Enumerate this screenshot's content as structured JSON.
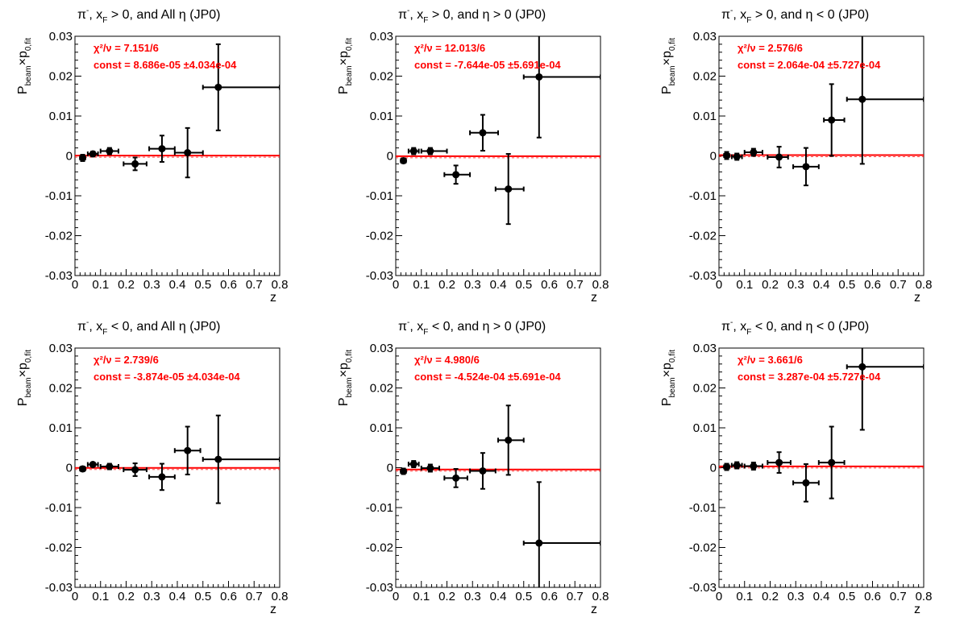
{
  "chart_data": [
    {
      "type": "scatter",
      "title_parts": {
        "particle": "π",
        "particle_sup": "-",
        "xf": "x",
        "xf_sub": "F",
        "cut": " > 0, and All η (JP0)"
      },
      "xlabel": "z",
      "ylabel_parts": {
        "p1": "P",
        "p1_sub": "beam",
        "times": "×p",
        "p2_sub": "0,fit"
      },
      "xlim": [
        0,
        0.8
      ],
      "ylim": [
        -0.03,
        0.03
      ],
      "xticks": [
        "0",
        "0.1",
        "0.2",
        "0.3",
        "0.4",
        "0.5",
        "0.6",
        "0.7",
        "0.8"
      ],
      "yticks": [
        "-0.03",
        "-0.02",
        "-0.01",
        "0",
        "0.01",
        "0.02",
        "0.03"
      ],
      "xtick_values": [
        0,
        0.1,
        0.2,
        0.3,
        0.4,
        0.5,
        0.6,
        0.7,
        0.8
      ],
      "ytick_values": [
        -0.03,
        -0.02,
        -0.01,
        0,
        0.01,
        0.02,
        0.03
      ],
      "chi2_label": "χ²/ν = 7.151/6",
      "const_label": "const = 8.686e-05  ±4.034e-04",
      "fit_const": 8.686e-05,
      "points": [
        {
          "x": 0.03,
          "xerr_lo": 0.01,
          "xerr_hi": 0.01,
          "y": -0.0005,
          "yerr": 0.0008
        },
        {
          "x": 0.07,
          "xerr_lo": 0.02,
          "xerr_hi": 0.02,
          "y": 0.0005,
          "yerr": 0.0006
        },
        {
          "x": 0.135,
          "xerr_lo": 0.035,
          "xerr_hi": 0.035,
          "y": 0.0012,
          "yerr": 0.0008
        },
        {
          "x": 0.235,
          "xerr_lo": 0.045,
          "xerr_hi": 0.045,
          "y": -0.002,
          "yerr": 0.0016
        },
        {
          "x": 0.34,
          "xerr_lo": 0.05,
          "xerr_hi": 0.05,
          "y": 0.0018,
          "yerr": 0.0033
        },
        {
          "x": 0.44,
          "xerr_lo": 0.05,
          "xerr_hi": 0.06,
          "y": 0.0008,
          "yerr": 0.0062
        },
        {
          "x": 0.56,
          "xerr_lo": 0.06,
          "xerr_hi": 0.24,
          "y": 0.0172,
          "yerr": 0.0108
        }
      ]
    },
    {
      "type": "scatter",
      "title_parts": {
        "particle": "π",
        "particle_sup": "-",
        "xf": "x",
        "xf_sub": "F",
        "cut": " > 0, and η > 0 (JP0)"
      },
      "xlabel": "z",
      "ylabel_parts": {
        "p1": "P",
        "p1_sub": "beam",
        "times": "×p",
        "p2_sub": "0,fit"
      },
      "xlim": [
        0,
        0.8
      ],
      "ylim": [
        -0.03,
        0.03
      ],
      "xticks": [
        "0",
        "0.1",
        "0.2",
        "0.3",
        "0.4",
        "0.5",
        "0.6",
        "0.7",
        "0.8"
      ],
      "yticks": [
        "-0.03",
        "-0.02",
        "-0.01",
        "0",
        "0.01",
        "0.02",
        "0.03"
      ],
      "xtick_values": [
        0,
        0.1,
        0.2,
        0.3,
        0.4,
        0.5,
        0.6,
        0.7,
        0.8
      ],
      "ytick_values": [
        -0.03,
        -0.02,
        -0.01,
        0,
        0.01,
        0.02,
        0.03
      ],
      "chi2_label": "χ²/ν = 12.013/6",
      "const_label": "const = -7.644e-05  ±5.691e-04",
      "fit_const": -7.644e-05,
      "points": [
        {
          "x": 0.03,
          "xerr_lo": 0.01,
          "xerr_hi": 0.01,
          "y": -0.0012,
          "yerr": 0.0006
        },
        {
          "x": 0.07,
          "xerr_lo": 0.02,
          "xerr_hi": 0.02,
          "y": 0.0012,
          "yerr": 0.0008
        },
        {
          "x": 0.135,
          "xerr_lo": 0.035,
          "xerr_hi": 0.065,
          "y": 0.0012,
          "yerr": 0.0008
        },
        {
          "x": 0.235,
          "xerr_lo": 0.045,
          "xerr_hi": 0.055,
          "y": -0.0047,
          "yerr": 0.0023
        },
        {
          "x": 0.34,
          "xerr_lo": 0.05,
          "xerr_hi": 0.06,
          "y": 0.0058,
          "yerr": 0.0045
        },
        {
          "x": 0.44,
          "xerr_lo": 0.05,
          "xerr_hi": 0.06,
          "y": -0.0083,
          "yerr": 0.0088
        },
        {
          "x": 0.56,
          "xerr_lo": 0.06,
          "xerr_hi": 0.24,
          "y": 0.0198,
          "yerr": 0.0152
        }
      ]
    },
    {
      "type": "scatter",
      "title_parts": {
        "particle": "π",
        "particle_sup": "-",
        "xf": "x",
        "xf_sub": "F",
        "cut": " > 0, and η < 0 (JP0)"
      },
      "xlabel": "z",
      "ylabel_parts": {
        "p1": "P",
        "p1_sub": "beam",
        "times": "×p",
        "p2_sub": "0,fit"
      },
      "xlim": [
        0,
        0.8
      ],
      "ylim": [
        -0.03,
        0.03
      ],
      "xticks": [
        "0",
        "0.1",
        "0.2",
        "0.3",
        "0.4",
        "0.5",
        "0.6",
        "0.7",
        "0.8"
      ],
      "yticks": [
        "-0.03",
        "-0.02",
        "-0.01",
        "0",
        "0.01",
        "0.02",
        "0.03"
      ],
      "xtick_values": [
        0,
        0.1,
        0.2,
        0.3,
        0.4,
        0.5,
        0.6,
        0.7,
        0.8
      ],
      "ytick_values": [
        -0.03,
        -0.02,
        -0.01,
        0,
        0.01,
        0.02,
        0.03
      ],
      "chi2_label": "χ²/ν = 2.576/6",
      "const_label": "const = 2.064e-04  ±5.727e-04",
      "fit_const": 0.0002064,
      "points": [
        {
          "x": 0.03,
          "xerr_lo": 0.01,
          "xerr_hi": 0.01,
          "y": 0.0001,
          "yerr": 0.0009
        },
        {
          "x": 0.07,
          "xerr_lo": 0.02,
          "xerr_hi": 0.02,
          "y": -0.0002,
          "yerr": 0.0008
        },
        {
          "x": 0.135,
          "xerr_lo": 0.035,
          "xerr_hi": 0.035,
          "y": 0.0009,
          "yerr": 0.0009
        },
        {
          "x": 0.235,
          "xerr_lo": 0.045,
          "xerr_hi": 0.035,
          "y": -0.0003,
          "yerr": 0.0026
        },
        {
          "x": 0.34,
          "xerr_lo": 0.05,
          "xerr_hi": 0.05,
          "y": -0.0027,
          "yerr": 0.0047
        },
        {
          "x": 0.44,
          "xerr_lo": 0.03,
          "xerr_hi": 0.05,
          "y": 0.009,
          "yerr": 0.009
        },
        {
          "x": 0.56,
          "xerr_lo": 0.06,
          "xerr_hi": 0.24,
          "y": 0.0142,
          "yerr": 0.0162
        }
      ]
    },
    {
      "type": "scatter",
      "title_parts": {
        "particle": "π",
        "particle_sup": "-",
        "xf": "x",
        "xf_sub": "F",
        "cut": " < 0, and All η (JP0)"
      },
      "xlabel": "z",
      "ylabel_parts": {
        "p1": "P",
        "p1_sub": "beam",
        "times": "×p",
        "p2_sub": "0,fit"
      },
      "xlim": [
        0,
        0.8
      ],
      "ylim": [
        -0.03,
        0.03
      ],
      "xticks": [
        "0",
        "0.1",
        "0.2",
        "0.3",
        "0.4",
        "0.5",
        "0.6",
        "0.7",
        "0.8"
      ],
      "yticks": [
        "-0.03",
        "-0.02",
        "-0.01",
        "0",
        "0.01",
        "0.02",
        "0.03"
      ],
      "xtick_values": [
        0,
        0.1,
        0.2,
        0.3,
        0.4,
        0.5,
        0.6,
        0.7,
        0.8
      ],
      "ytick_values": [
        -0.03,
        -0.02,
        -0.01,
        0,
        0.01,
        0.02,
        0.03
      ],
      "chi2_label": "χ²/ν = 2.739/6",
      "const_label": "const = -3.874e-05  ±4.034e-04",
      "fit_const": -3.874e-05,
      "points": [
        {
          "x": 0.03,
          "xerr_lo": 0.01,
          "xerr_hi": 0.01,
          "y": -0.0003,
          "yerr": 0.0006
        },
        {
          "x": 0.07,
          "xerr_lo": 0.02,
          "xerr_hi": 0.02,
          "y": 0.0008,
          "yerr": 0.0005
        },
        {
          "x": 0.135,
          "xerr_lo": 0.035,
          "xerr_hi": 0.035,
          "y": 0.0003,
          "yerr": 0.0007
        },
        {
          "x": 0.235,
          "xerr_lo": 0.045,
          "xerr_hi": 0.045,
          "y": -0.0005,
          "yerr": 0.0016
        },
        {
          "x": 0.34,
          "xerr_lo": 0.05,
          "xerr_hi": 0.05,
          "y": -0.0023,
          "yerr": 0.0033
        },
        {
          "x": 0.44,
          "xerr_lo": 0.05,
          "xerr_hi": 0.05,
          "y": 0.0043,
          "yerr": 0.006
        },
        {
          "x": 0.56,
          "xerr_lo": 0.06,
          "xerr_hi": 0.24,
          "y": 0.0021,
          "yerr": 0.011
        }
      ]
    },
    {
      "type": "scatter",
      "title_parts": {
        "particle": "π",
        "particle_sup": "-",
        "xf": "x",
        "xf_sub": "F",
        "cut": " < 0, and η > 0 (JP0)"
      },
      "xlabel": "z",
      "ylabel_parts": {
        "p1": "P",
        "p1_sub": "beam",
        "times": "×p",
        "p2_sub": "0,fit"
      },
      "xlim": [
        0,
        0.8
      ],
      "ylim": [
        -0.03,
        0.03
      ],
      "xticks": [
        "0",
        "0.1",
        "0.2",
        "0.3",
        "0.4",
        "0.5",
        "0.6",
        "0.7",
        "0.8"
      ],
      "yticks": [
        "-0.03",
        "-0.02",
        "-0.01",
        "0",
        "0.01",
        "0.02",
        "0.03"
      ],
      "xtick_values": [
        0,
        0.1,
        0.2,
        0.3,
        0.4,
        0.5,
        0.6,
        0.7,
        0.8
      ],
      "ytick_values": [
        -0.03,
        -0.02,
        -0.01,
        0,
        0.01,
        0.02,
        0.03
      ],
      "chi2_label": "χ²/ν = 4.980/6",
      "const_label": "const = -4.524e-04  ±5.691e-04",
      "fit_const": -0.0004524,
      "points": [
        {
          "x": 0.03,
          "xerr_lo": 0.01,
          "xerr_hi": 0.01,
          "y": -0.0009,
          "yerr": 0.0007
        },
        {
          "x": 0.07,
          "xerr_lo": 0.02,
          "xerr_hi": 0.02,
          "y": 0.0009,
          "yerr": 0.0008
        },
        {
          "x": 0.135,
          "xerr_lo": 0.035,
          "xerr_hi": 0.035,
          "y": -0.0001,
          "yerr": 0.0009
        },
        {
          "x": 0.235,
          "xerr_lo": 0.045,
          "xerr_hi": 0.045,
          "y": -0.0026,
          "yerr": 0.0023
        },
        {
          "x": 0.34,
          "xerr_lo": 0.05,
          "xerr_hi": 0.05,
          "y": -0.0008,
          "yerr": 0.0045
        },
        {
          "x": 0.44,
          "xerr_lo": 0.04,
          "xerr_hi": 0.06,
          "y": 0.0069,
          "yerr": 0.0087
        },
        {
          "x": 0.56,
          "xerr_lo": 0.06,
          "xerr_hi": 0.24,
          "y": -0.0189,
          "yerr": 0.0153
        }
      ]
    },
    {
      "type": "scatter",
      "title_parts": {
        "particle": "π",
        "particle_sup": "-",
        "xf": "x",
        "xf_sub": "F",
        "cut": " < 0, and η < 0 (JP0)"
      },
      "xlabel": "z",
      "ylabel_parts": {
        "p1": "P",
        "p1_sub": "beam",
        "times": "×p",
        "p2_sub": "0,fit"
      },
      "xlim": [
        0,
        0.8
      ],
      "ylim": [
        -0.03,
        0.03
      ],
      "xticks": [
        "0",
        "0.1",
        "0.2",
        "0.3",
        "0.4",
        "0.5",
        "0.6",
        "0.7",
        "0.8"
      ],
      "yticks": [
        "-0.03",
        "-0.02",
        "-0.01",
        "0",
        "0.01",
        "0.02",
        "0.03"
      ],
      "xtick_values": [
        0,
        0.1,
        0.2,
        0.3,
        0.4,
        0.5,
        0.6,
        0.7,
        0.8
      ],
      "ytick_values": [
        -0.03,
        -0.02,
        -0.01,
        0,
        0.01,
        0.02,
        0.03
      ],
      "chi2_label": "χ²/ν = 3.661/6",
      "const_label": "const = 3.287e-04  ±5.727e-04",
      "fit_const": 0.0003287,
      "points": [
        {
          "x": 0.03,
          "xerr_lo": 0.01,
          "xerr_hi": 0.01,
          "y": 0.0002,
          "yerr": 0.0008
        },
        {
          "x": 0.07,
          "xerr_lo": 0.02,
          "xerr_hi": 0.02,
          "y": 0.0006,
          "yerr": 0.0008
        },
        {
          "x": 0.135,
          "xerr_lo": 0.035,
          "xerr_hi": 0.035,
          "y": 0.0004,
          "yerr": 0.0009
        },
        {
          "x": 0.235,
          "xerr_lo": 0.045,
          "xerr_hi": 0.045,
          "y": 0.0013,
          "yerr": 0.0026
        },
        {
          "x": 0.34,
          "xerr_lo": 0.05,
          "xerr_hi": 0.05,
          "y": -0.0038,
          "yerr": 0.0047
        },
        {
          "x": 0.44,
          "xerr_lo": 0.05,
          "xerr_hi": 0.05,
          "y": 0.0013,
          "yerr": 0.009
        },
        {
          "x": 0.56,
          "xerr_lo": 0.06,
          "xerr_hi": 0.24,
          "y": 0.0253,
          "yerr": 0.0158
        }
      ]
    }
  ],
  "colors": {
    "fit_line": "#ff0000",
    "stats_text": "#ff0000",
    "points": "#000000",
    "frame": "#000000"
  }
}
